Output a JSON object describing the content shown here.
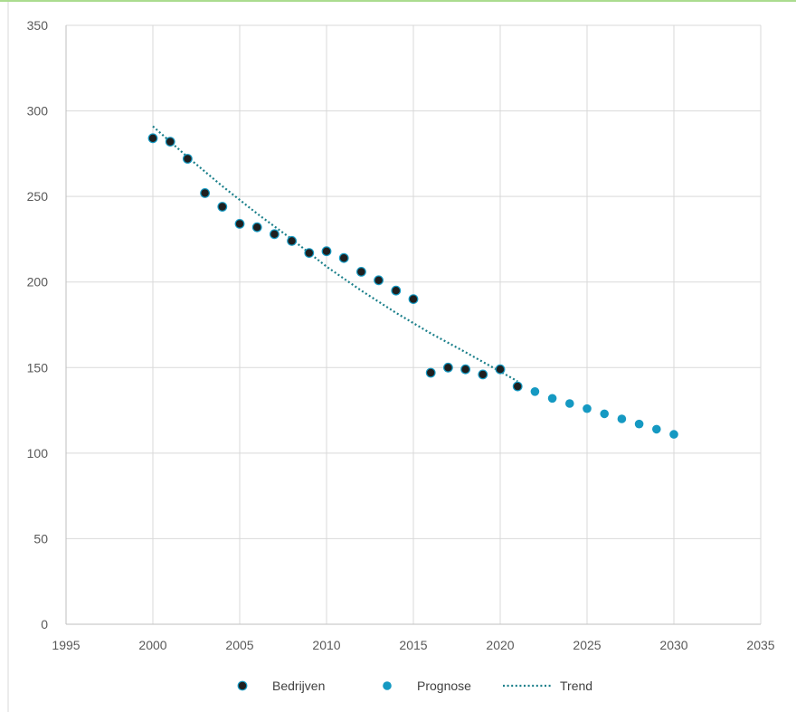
{
  "chart_data": {
    "type": "scatter",
    "xlim": [
      1995,
      2035
    ],
    "ylim": [
      0,
      350
    ],
    "x_ticks": [
      1995,
      2000,
      2005,
      2010,
      2015,
      2020,
      2025,
      2030,
      2035
    ],
    "y_ticks": [
      0,
      50,
      100,
      150,
      200,
      250,
      300,
      350
    ],
    "grid": true,
    "legend_position": "bottom",
    "series": [
      {
        "name": "Bedrijven",
        "color": "#1f1f1f",
        "edge_color": "#1599c2",
        "marker": "circle",
        "points": [
          [
            2000,
            284
          ],
          [
            2001,
            282
          ],
          [
            2002,
            272
          ],
          [
            2003,
            252
          ],
          [
            2004,
            244
          ],
          [
            2005,
            234
          ],
          [
            2006,
            232
          ],
          [
            2007,
            228
          ],
          [
            2008,
            224
          ],
          [
            2009,
            217
          ],
          [
            2010,
            218
          ],
          [
            2011,
            214
          ],
          [
            2012,
            206
          ],
          [
            2013,
            201
          ],
          [
            2014,
            195
          ],
          [
            2015,
            190
          ],
          [
            2016,
            147
          ],
          [
            2017,
            150
          ],
          [
            2018,
            149
          ],
          [
            2019,
            146
          ],
          [
            2020,
            149
          ],
          [
            2021,
            139
          ]
        ]
      },
      {
        "name": "Prognose",
        "color": "#1599c2",
        "marker": "circle",
        "points": [
          [
            2022,
            136
          ],
          [
            2023,
            132
          ],
          [
            2024,
            129
          ],
          [
            2025,
            126
          ],
          [
            2026,
            123
          ],
          [
            2027,
            120
          ],
          [
            2028,
            117
          ],
          [
            2029,
            114
          ],
          [
            2030,
            111
          ]
        ]
      },
      {
        "name": "Trend",
        "color": "#1a7f8a",
        "style": "dotted-line",
        "points": [
          [
            2000,
            291
          ],
          [
            2002,
            273
          ],
          [
            2004,
            256
          ],
          [
            2006,
            240
          ],
          [
            2008,
            225
          ],
          [
            2010,
            209
          ],
          [
            2012,
            195
          ],
          [
            2014,
            182
          ],
          [
            2016,
            170
          ],
          [
            2018,
            159
          ],
          [
            2021,
            142
          ]
        ]
      }
    ]
  }
}
